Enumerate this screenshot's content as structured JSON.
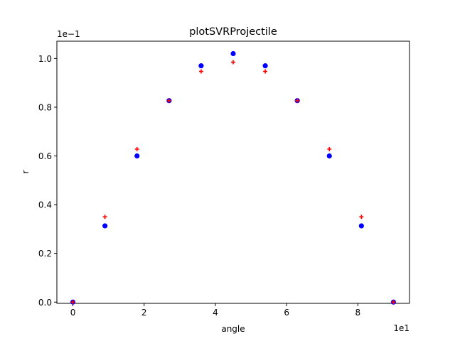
{
  "chart_data": {
    "type": "scatter",
    "title": "plotSVRProjectile",
    "xlabel": "angle",
    "ylabel": "r",
    "x_offset_text": "1e1",
    "y_offset_text": "1e−1",
    "xlim": [
      -0.45,
      9.45
    ],
    "ylim": [
      -0.0051,
      1.071
    ],
    "x_ticks": [
      0,
      2,
      4,
      6,
      8
    ],
    "x_tick_labels": [
      "0",
      "2",
      "4",
      "6",
      "8"
    ],
    "y_ticks": [
      0.0,
      0.2,
      0.4,
      0.6,
      0.8,
      1.0
    ],
    "y_tick_labels": [
      "0.0",
      "0.2",
      "0.4",
      "0.6",
      "0.8",
      "1.0"
    ],
    "grid": false,
    "series": [
      {
        "marker": "circle",
        "color": "#0000ff",
        "x": [
          0,
          0.9,
          1.8,
          2.7,
          3.6,
          4.5,
          5.4,
          6.3,
          7.2,
          8.1,
          9.0
        ],
        "y": [
          0.0,
          0.313,
          0.6,
          0.827,
          0.97,
          1.02,
          0.97,
          0.827,
          0.6,
          0.313,
          0.0
        ]
      },
      {
        "marker": "plus",
        "color": "#ff0000",
        "x": [
          0,
          0.9,
          1.8,
          2.7,
          3.6,
          4.5,
          5.4,
          6.3,
          7.2,
          8.1,
          9.0
        ],
        "y": [
          0.0,
          0.35,
          0.628,
          0.827,
          0.947,
          0.985,
          0.947,
          0.827,
          0.628,
          0.35,
          0.0
        ]
      }
    ]
  }
}
